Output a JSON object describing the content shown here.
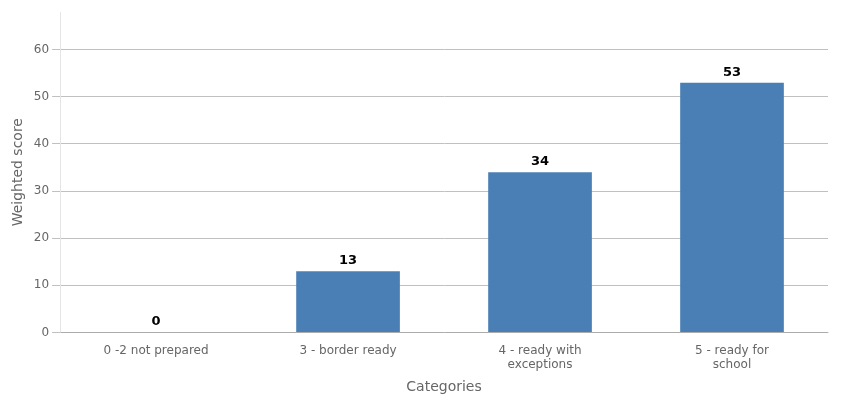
{
  "chart_data": {
    "type": "bar",
    "categories": [
      "0 -2 not prepared",
      "3 - border ready",
      "4 - ready with\nexceptions",
      "5 - ready for\nschool"
    ],
    "values": [
      0,
      13,
      34,
      53
    ],
    "color": "#4a7fb5",
    "xlabel": "Categories",
    "ylabel": "Weighted score",
    "ylim": [
      0,
      68
    ],
    "yticks": [
      0,
      10,
      20,
      30,
      40,
      50,
      60
    ],
    "grid": true,
    "data_labels": true
  }
}
